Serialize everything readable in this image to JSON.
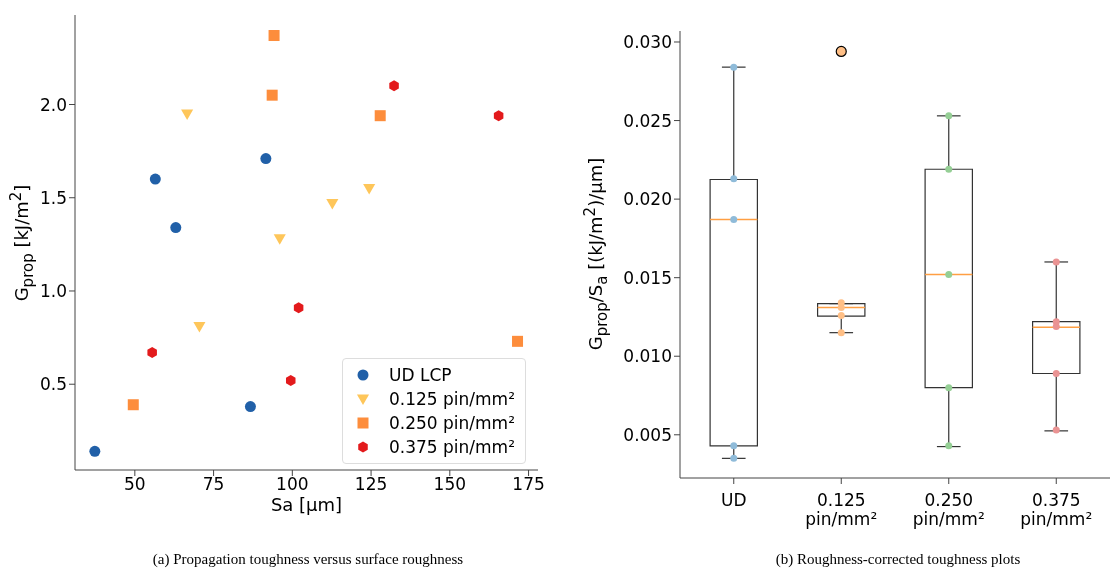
{
  "chart_data": [
    {
      "type": "scatter",
      "xlabel": "Sa [µm]",
      "ylabel": "G$_{prop}$ [kJ/m$^{2}$]",
      "xlim": [
        31,
        178
      ],
      "xticks": [
        50,
        75,
        100,
        125,
        150,
        175
      ],
      "ylim": [
        0.04,
        2.48
      ],
      "yticks": [
        {
          "value": 0.5,
          "label": "0.5"
        },
        {
          "value": 1,
          "label": "1.0"
        },
        {
          "value": 1.5,
          "label": "1.5"
        },
        {
          "value": 2,
          "label": "2.0"
        }
      ],
      "legend": "bottom right",
      "annotations": [
        "(a) Propagation toughness versus surface roughness"
      ],
      "series": [
        {
          "name": "UD LCP",
          "color": "#2160a8",
          "marker": "circle",
          "x": [
            37.3,
            56.5,
            63,
            91.6,
            86.7
          ],
          "values": [
            0.14,
            1.6,
            1.34,
            1.71,
            0.38
          ]
        },
        {
          "name": "0.125 pin/mm²",
          "color": "#fec65a",
          "marker": "triangle",
          "x": [
            66.6,
            96,
            112.7,
            124.4,
            70.5
          ],
          "values": [
            1.95,
            1.28,
            1.47,
            1.55,
            0.81
          ]
        },
        {
          "name": "0.250 pin/mm²",
          "color": "#fd8d3c",
          "marker": "square",
          "x": [
            94.2,
            93.6,
            127.9,
            49.5,
            171.5
          ],
          "values": [
            2.37,
            2.05,
            1.94,
            0.39,
            0.73
          ]
        },
        {
          "name": "0.375 pin/mm²",
          "color": "#e31a1c",
          "x": [
            132.3,
            165.5,
            102,
            55.5,
            99.5
          ],
          "values": [
            2.1,
            1.94,
            0.91,
            0.67,
            0.52
          ]
        }
      ]
    },
    {
      "type": "box",
      "categories": [
        "UD",
        "0.125\npin/mm²",
        "0.250\npin/mm²",
        "0.375\npin/mm²"
      ],
      "ylabel": "G$_{prop}$/S$_{a}$ [(kJ/m$^{2}$)/μm]",
      "ylim": [
        0.00225,
        0.0307
      ],
      "yticks": [
        {
          "value": 0.005,
          "label": "0.005"
        },
        {
          "value": 0.01,
          "label": "0.010"
        },
        {
          "value": 0.015,
          "label": "0.015"
        },
        {
          "value": 0.02,
          "label": "0.020"
        },
        {
          "value": 0.025,
          "label": "0.025"
        },
        {
          "value": 0.03,
          "label": "0.030"
        }
      ],
      "annotations": [
        "(b) Roughness-corrected toughness plots"
      ],
      "boxes": [
        {
          "low": 0.0035,
          "q1": 0.0043,
          "median": 0.0187,
          "q3": 0.02125,
          "high": 0.0284
        },
        {
          "low": 0.0115,
          "q1": 0.01255,
          "median": 0.0131,
          "q3": 0.01335,
          "high": 0.01335,
          "outliers": [
            0.0294
          ]
        },
        {
          "low": 0.00425,
          "q1": 0.008,
          "median": 0.0152,
          "q3": 0.0219,
          "high": 0.0253
        },
        {
          "low": 0.00525,
          "q1": 0.0089,
          "median": 0.01185,
          "q3": 0.0122,
          "high": 0.016
        }
      ],
      "series": [
        {
          "type": "scatter",
          "color": "#8fbbd9",
          "x": [
            "UD",
            "UD",
            "UD",
            "UD",
            "UD"
          ],
          "values": [
            0.0284,
            0.0213,
            0.0187,
            0.0043,
            0.0035
          ]
        },
        {
          "type": "scatter",
          "color": "#ffbf86",
          "x": [
            "0.125\npin/mm²",
            "0.125\npin/mm²",
            "0.125\npin/mm²",
            "0.125\npin/mm²"
          ],
          "values": [
            0.0134,
            0.0131,
            0.0126,
            0.0115
          ]
        },
        {
          "type": "scatter",
          "color": "#95cf95",
          "x": [
            "0.250\npin/mm²",
            "0.250\npin/mm²",
            "0.250\npin/mm²",
            "0.250\npin/mm²",
            "0.250\npin/mm²"
          ],
          "values": [
            0.0253,
            0.0219,
            0.0152,
            0.008,
            0.0043
          ]
        },
        {
          "type": "scatter",
          "color": "#ea9393",
          "x": [
            "0.375\npin/mm²",
            "0.375\npin/mm²",
            "0.375\npin/mm²",
            "0.375\npin/mm²",
            "0.375\npin/mm²"
          ],
          "values": [
            0.0122,
            0.0119,
            0.0089,
            0.0053,
            0.016
          ]
        }
      ]
    }
  ]
}
